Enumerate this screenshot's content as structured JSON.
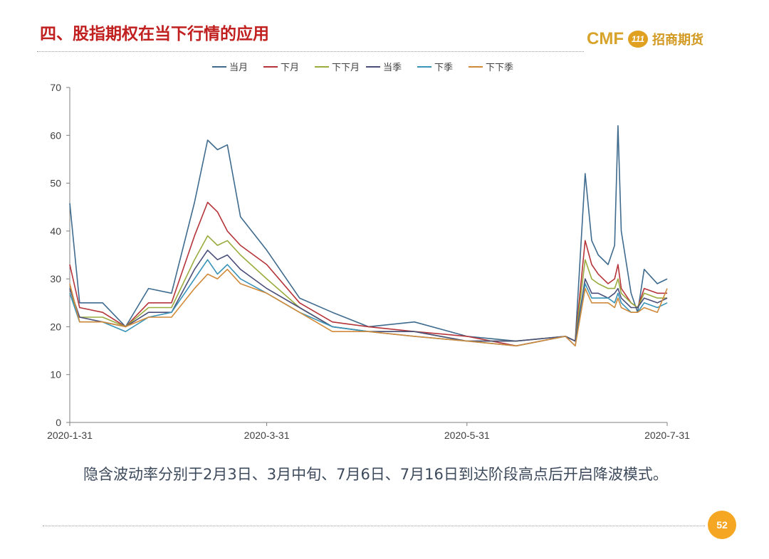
{
  "slide": {
    "title": "四、股指期权在当下行情的应用",
    "logo_text": "CMF",
    "logo_badge": "111",
    "logo_cn": "招商期货",
    "caption": "隐含波动率分别于2月3日、3月中旬、7月6日、7月16日到达阶段高点后开启降波模式。",
    "page_number": "52"
  },
  "chart_data": {
    "type": "line",
    "title": "",
    "xlabel": "",
    "ylabel": "",
    "ylim": [
      0,
      70
    ],
    "yticks": [
      0,
      10,
      20,
      30,
      40,
      50,
      60,
      70
    ],
    "xlim": [
      "2020-01-31",
      "2020-07-31"
    ],
    "xticks": [
      "2020-1-31",
      "2020-3-31",
      "2020-5-31",
      "2020-7-31"
    ],
    "legend_position": "top-center",
    "grid": false,
    "x": [
      "2020-01-31",
      "2020-02-03",
      "2020-02-10",
      "2020-02-17",
      "2020-02-24",
      "2020-03-02",
      "2020-03-09",
      "2020-03-13",
      "2020-03-16",
      "2020-03-19",
      "2020-03-23",
      "2020-03-31",
      "2020-04-10",
      "2020-04-20",
      "2020-05-01",
      "2020-05-15",
      "2020-05-31",
      "2020-06-15",
      "2020-06-30",
      "2020-07-03",
      "2020-07-06",
      "2020-07-08",
      "2020-07-10",
      "2020-07-13",
      "2020-07-15",
      "2020-07-16",
      "2020-07-17",
      "2020-07-20",
      "2020-07-22",
      "2020-07-24",
      "2020-07-28",
      "2020-07-31"
    ],
    "series": [
      {
        "name": "当月",
        "color": "#3f6b8e",
        "values": [
          45.8,
          25,
          25,
          20,
          28,
          27,
          46,
          59,
          57,
          58,
          43,
          36,
          26,
          23,
          20,
          21,
          18,
          17,
          18,
          17,
          52,
          38,
          35,
          33,
          37,
          62,
          40,
          27,
          23,
          32,
          29,
          30
        ]
      },
      {
        "name": "下月",
        "color": "#b5343a",
        "values": [
          33,
          24,
          23,
          20,
          25,
          25,
          39,
          46,
          44,
          40,
          37,
          33,
          25,
          21,
          20,
          19,
          18,
          16,
          18,
          17,
          38,
          33,
          31,
          29,
          30,
          33,
          28,
          25,
          24,
          28,
          27,
          27
        ]
      },
      {
        "name": "下下月",
        "color": "#9bab3e",
        "values": [
          27,
          22,
          22,
          20,
          24,
          24,
          34,
          39,
          37,
          38,
          35,
          30,
          24,
          20,
          19,
          19,
          17,
          17,
          18,
          17,
          34,
          30,
          29,
          28,
          28,
          30,
          27,
          25,
          24,
          27,
          26,
          26
        ]
      },
      {
        "name": "当季",
        "color": "#4a4f7a",
        "values": [
          28,
          22,
          21,
          20,
          23,
          23,
          32,
          36,
          34,
          35,
          32,
          28,
          24,
          20,
          19,
          19,
          17,
          17,
          18,
          17,
          30,
          27,
          27,
          26,
          27,
          28,
          26,
          24,
          24,
          26,
          25,
          26
        ]
      },
      {
        "name": "下季",
        "color": "#3a93b8",
        "values": [
          27,
          21,
          21,
          19,
          22,
          23,
          30,
          34,
          31,
          33,
          30,
          27,
          23,
          20,
          19,
          18,
          17,
          16,
          18,
          16,
          29,
          26,
          26,
          26,
          25,
          27,
          25,
          23,
          23,
          25,
          24,
          25
        ]
      },
      {
        "name": "下下季",
        "color": "#d08a3a",
        "values": [
          29,
          21,
          21,
          20,
          22,
          22,
          28,
          31,
          30,
          32,
          29,
          27,
          23,
          19,
          19,
          18,
          17,
          16,
          18,
          16,
          28,
          25,
          25,
          25,
          24,
          26,
          24,
          23,
          23,
          24,
          23,
          28
        ]
      }
    ]
  }
}
